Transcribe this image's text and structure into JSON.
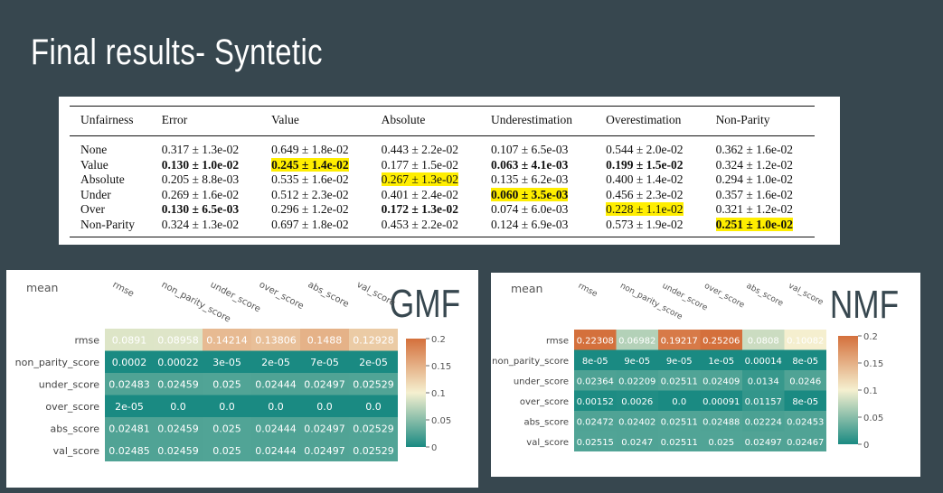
{
  "slide": {
    "title": "Final results- Syntetic"
  },
  "results_table": {
    "headers": [
      "Unfairness",
      "Error",
      "Value",
      "Absolute",
      "Underestimation",
      "Overestimation",
      "Non-Parity"
    ],
    "rows": [
      {
        "label": "None",
        "cells": [
          "0.317 ± 1.3e-02",
          "0.649 ± 1.8e-02",
          "0.443 ± 2.2e-02",
          "0.107 ± 6.5e-03",
          "0.544 ± 2.0e-02",
          "0.362 ± 1.6e-02"
        ],
        "bold": [],
        "highlight": []
      },
      {
        "label": "Value",
        "cells": [
          "0.130 ± 1.0e-02",
          "0.245 ± 1.4e-02",
          "0.177 ± 1.5e-02",
          "0.063 ± 4.1e-03",
          "0.199 ± 1.5e-02",
          "0.324 ± 1.2e-02"
        ],
        "bold": [
          0,
          1,
          3,
          4
        ],
        "highlight": [
          1
        ]
      },
      {
        "label": "Absolute",
        "cells": [
          "0.205 ± 8.8e-03",
          "0.535 ± 1.6e-02",
          "0.267 ± 1.3e-02",
          "0.135 ± 6.2e-03",
          "0.400 ± 1.4e-02",
          "0.294 ± 1.0e-02"
        ],
        "bold": [],
        "highlight": [
          2
        ]
      },
      {
        "label": "Under",
        "cells": [
          "0.269 ± 1.6e-02",
          "0.512 ± 2.3e-02",
          "0.401 ± 2.4e-02",
          "0.060 ± 3.5e-03",
          "0.456 ± 2.3e-02",
          "0.357 ± 1.6e-02"
        ],
        "bold": [
          3
        ],
        "highlight": [
          3
        ]
      },
      {
        "label": "Over",
        "cells": [
          "0.130 ± 6.5e-03",
          "0.296 ± 1.2e-02",
          "0.172 ± 1.3e-02",
          "0.074 ± 6.0e-03",
          "0.228 ± 1.1e-02",
          "0.321 ± 1.2e-02"
        ],
        "bold": [
          0,
          2
        ],
        "highlight": [
          4
        ]
      },
      {
        "label": "Non-Parity",
        "cells": [
          "0.324 ± 1.3e-02",
          "0.697 ± 1.8e-02",
          "0.453 ± 2.2e-02",
          "0.124 ± 6.9e-03",
          "0.573 ± 1.9e-02",
          "0.251 ± 1.0e-02"
        ],
        "bold": [
          5
        ],
        "highlight": [
          5
        ]
      }
    ]
  },
  "colors": {
    "background": "#37474f",
    "highlight": "#ffee00",
    "scale_low": "#1a8a82",
    "scale_mid": "#f5f0d0",
    "scale_high": "#d4703c"
  },
  "chart_data": [
    {
      "type": "heatmap",
      "name": "GMF",
      "title": "GMF",
      "corner_label": "mean",
      "columns": [
        "rmse",
        "non_parity_score",
        "under_score",
        "over_score",
        "abs_score",
        "val_score"
      ],
      "rows": [
        "rmse",
        "non_parity_score",
        "under_score",
        "over_score",
        "abs_score",
        "val_score"
      ],
      "values": [
        [
          0.0891,
          0.08958,
          0.14214,
          0.13806,
          0.1488,
          0.12928
        ],
        [
          0.0002,
          0.00022,
          3e-05,
          2e-05,
          7e-05,
          2e-05
        ],
        [
          0.02483,
          0.02459,
          0.025,
          0.02444,
          0.02497,
          0.02529
        ],
        [
          2e-05,
          0.0,
          0.0,
          0.0,
          0.0,
          0.0
        ],
        [
          0.02481,
          0.02459,
          0.025,
          0.02444,
          0.02497,
          0.02529
        ],
        [
          0.02485,
          0.02459,
          0.025,
          0.02444,
          0.02497,
          0.02529
        ]
      ],
      "labels": [
        [
          "0.0891",
          "0.08958",
          "0.14214",
          "0.13806",
          "0.1488",
          "0.12928"
        ],
        [
          "0.0002",
          "0.00022",
          "3e-05",
          "2e-05",
          "7e-05",
          "2e-05"
        ],
        [
          "0.02483",
          "0.02459",
          "0.025",
          "0.02444",
          "0.02497",
          "0.02529"
        ],
        [
          "2e-05",
          "0.0",
          "0.0",
          "0.0",
          "0.0",
          "0.0"
        ],
        [
          "0.02481",
          "0.02459",
          "0.025",
          "0.02444",
          "0.02497",
          "0.02529"
        ],
        [
          "0.02485",
          "0.02459",
          "0.025",
          "0.02444",
          "0.02497",
          "0.02529"
        ]
      ],
      "colorbar": {
        "min": 0,
        "max": 0.2,
        "ticks": [
          0.2,
          0.15,
          0.1,
          0.05,
          0
        ]
      }
    },
    {
      "type": "heatmap",
      "name": "NMF",
      "title": "NMF",
      "corner_label": "mean",
      "columns": [
        "rmse",
        "non_parity_score",
        "under_score",
        "over_score",
        "abs_score",
        "val_score"
      ],
      "rows": [
        "rmse",
        "non_parity_score",
        "under_score",
        "over_score",
        "abs_score",
        "val_score"
      ],
      "values": [
        [
          0.22308,
          0.06982,
          0.19217,
          0.25206,
          0.0808,
          0.10082
        ],
        [
          8e-05,
          9e-05,
          9e-05,
          1e-05,
          0.00014,
          8e-05
        ],
        [
          0.02364,
          0.02209,
          0.02511,
          0.02409,
          0.0134,
          0.0246
        ],
        [
          0.00152,
          0.0026,
          0.0,
          0.00091,
          0.01157,
          8e-05
        ],
        [
          0.02472,
          0.02402,
          0.02511,
          0.02488,
          0.02224,
          0.02453
        ],
        [
          0.02515,
          0.0247,
          0.02511,
          0.025,
          0.02497,
          0.02467
        ]
      ],
      "labels": [
        [
          "0.22308",
          "0.06982",
          "0.19217",
          "0.25206",
          "0.0808",
          "0.10082"
        ],
        [
          "8e-05",
          "9e-05",
          "9e-05",
          "1e-05",
          "0.00014",
          "8e-05"
        ],
        [
          "0.02364",
          "0.02209",
          "0.02511",
          "0.02409",
          "0.0134",
          "0.0246"
        ],
        [
          "0.00152",
          "0.0026",
          "0.0",
          "0.00091",
          "0.01157",
          "8e-05"
        ],
        [
          "0.02472",
          "0.02402",
          "0.02511",
          "0.02488",
          "0.02224",
          "0.02453"
        ],
        [
          "0.02515",
          "0.0247",
          "0.02511",
          "0.025",
          "0.02497",
          "0.02467"
        ]
      ],
      "colorbar": {
        "min": 0,
        "max": 0.2,
        "ticks": [
          0.2,
          0.15,
          0.1,
          0.05,
          0
        ]
      }
    }
  ]
}
